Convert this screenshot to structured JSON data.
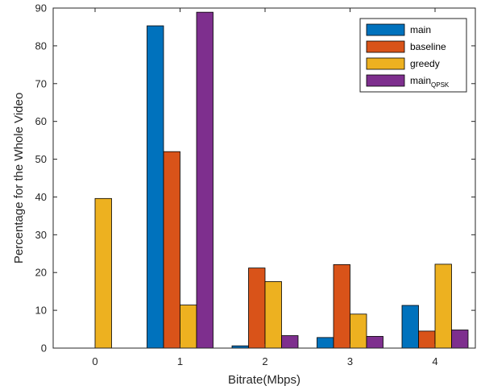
{
  "chart_data": {
    "type": "bar",
    "categories": [
      "0",
      "1",
      "2",
      "3",
      "4"
    ],
    "series": [
      {
        "name": "main",
        "name_subscript": "",
        "color": "#0072BD",
        "values": [
          0,
          85.3,
          0.6,
          2.8,
          11.3
        ]
      },
      {
        "name": "baseline",
        "name_subscript": "",
        "color": "#D95319",
        "values": [
          0,
          52,
          21.2,
          22.1,
          4.5
        ]
      },
      {
        "name": "greedy",
        "name_subscript": "",
        "color": "#EDB120",
        "values": [
          39.6,
          11.4,
          17.6,
          9,
          22.2
        ]
      },
      {
        "name": "main",
        "name_subscript": "QPSK",
        "color": "#7E2F8E",
        "values": [
          0,
          88.9,
          3.3,
          3.1,
          4.8
        ]
      }
    ],
    "xlabel": "Bitrate(Mbps)",
    "ylabel": "Percentage for the Whole Video",
    "ylim": [
      0,
      90
    ],
    "yticks": [
      "0",
      "10",
      "20",
      "30",
      "40",
      "50",
      "60",
      "70",
      "80",
      "90"
    ],
    "grid": false,
    "legend_position": "top-right"
  }
}
